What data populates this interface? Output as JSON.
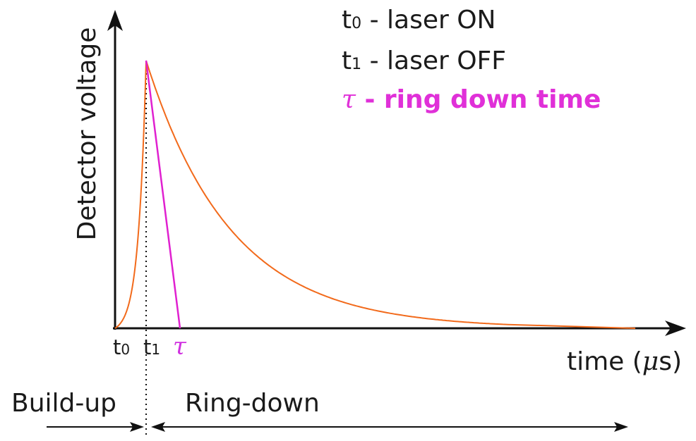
{
  "legend": {
    "t0_symbol": "t",
    "t0_sub": "0",
    "t0_text": " - laser ON",
    "t1_symbol": "t",
    "t1_sub": "1",
    "t1_text": " - laser OFF",
    "tau_symbol": "τ",
    "tau_text": " - ring down time"
  },
  "axes": {
    "y_label": "Detector voltage",
    "x_label_prefix": "time (",
    "x_label_mu": "μ",
    "x_label_suffix": "s)"
  },
  "ticks": {
    "t0_symbol": "t",
    "t0_sub": "0",
    "t1_symbol": "t",
    "t1_sub": "1",
    "tau": "τ"
  },
  "phases": {
    "buildup": "Build-up",
    "ringdown": "Ring-down"
  },
  "colors": {
    "curve": "#f26a1b",
    "tangent": "#e020d0",
    "tau_label": "#d030e0",
    "legend_tau": "#e030d8",
    "axis": "#111111"
  }
}
